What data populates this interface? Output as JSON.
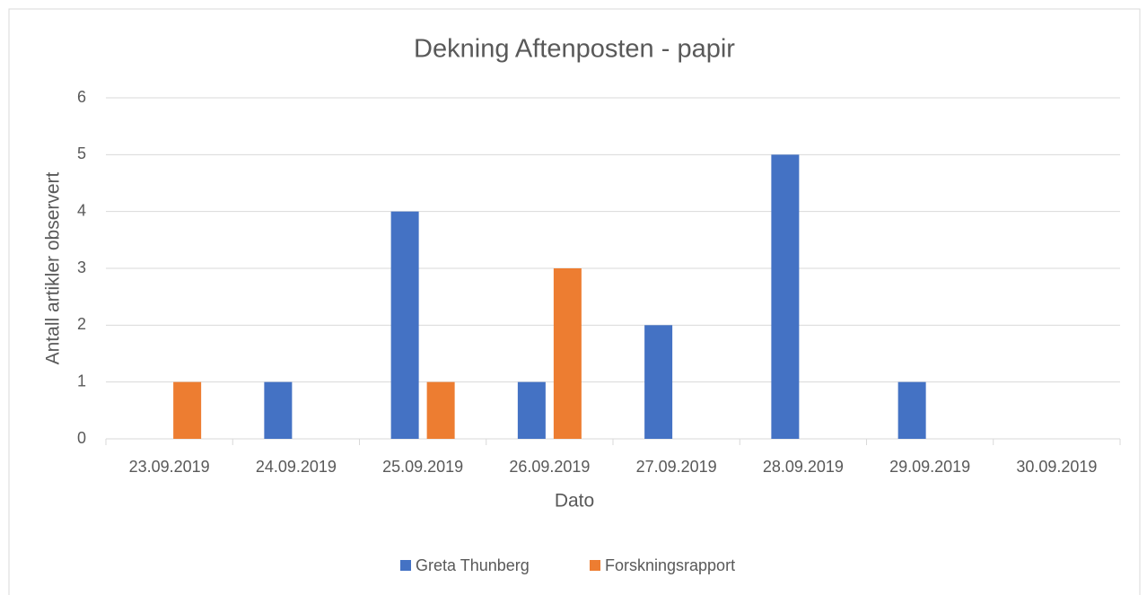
{
  "chart_data": {
    "type": "bar",
    "title": "Dekning Aftenposten - papir",
    "x_label": "Dato",
    "y_label": "Antall artikler observert",
    "categories": [
      "23.09.2019",
      "24.09.2019",
      "25.09.2019",
      "26.09.2019",
      "27.09.2019",
      "28.09.2019",
      "29.09.2019",
      "30.09.2019"
    ],
    "series": [
      {
        "name": "Greta Thunberg",
        "color": "#4472c4",
        "values": [
          0,
          1,
          4,
          1,
          2,
          5,
          1,
          0
        ]
      },
      {
        "name": "Forskningsrapport",
        "color": "#ed7d31",
        "values": [
          1,
          0,
          1,
          3,
          0,
          0,
          0,
          0
        ]
      }
    ],
    "ylim": [
      0,
      6
    ],
    "yticks": [
      0,
      1,
      2,
      3,
      4,
      5,
      6
    ],
    "grid": true,
    "legend": "bottom"
  }
}
